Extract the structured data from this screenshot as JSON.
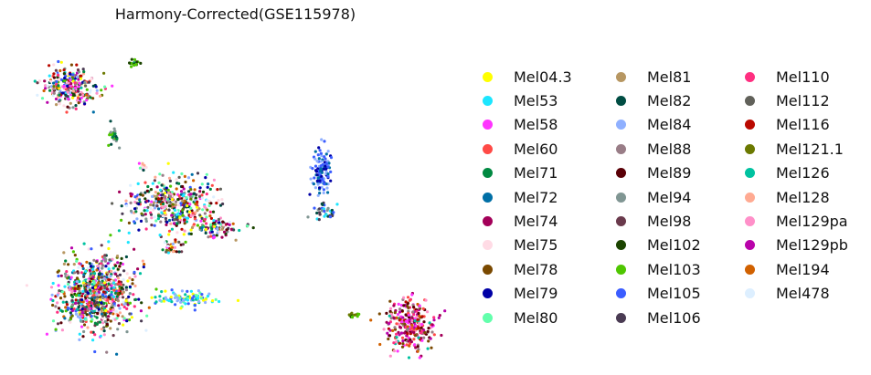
{
  "chart_data": {
    "type": "scatter",
    "title": "Harmony-Corrected(GSE115978)",
    "xlabel": "",
    "ylabel": "",
    "axes_visible": false,
    "legend_placement": "right",
    "legend_columns": 3,
    "series": [
      {
        "name": "Mel04.3",
        "color": "#FFFF00"
      },
      {
        "name": "Mel53",
        "color": "#1CE6FF"
      },
      {
        "name": "Mel58",
        "color": "#FF34FF"
      },
      {
        "name": "Mel60",
        "color": "#FF4A46"
      },
      {
        "name": "Mel71",
        "color": "#008941"
      },
      {
        "name": "Mel72",
        "color": "#006FA6"
      },
      {
        "name": "Mel74",
        "color": "#A30059"
      },
      {
        "name": "Mel75",
        "color": "#FFDBE5"
      },
      {
        "name": "Mel78",
        "color": "#7A4900"
      },
      {
        "name": "Mel79",
        "color": "#0000A6"
      },
      {
        "name": "Mel80",
        "color": "#63FFAC"
      },
      {
        "name": "Mel81",
        "color": "#B79762"
      },
      {
        "name": "Mel82",
        "color": "#004D43"
      },
      {
        "name": "Mel84",
        "color": "#8FB0FF"
      },
      {
        "name": "Mel88",
        "color": "#997D87"
      },
      {
        "name": "Mel89",
        "color": "#5A0007"
      },
      {
        "name": "Mel94",
        "color": "#809693"
      },
      {
        "name": "Mel98",
        "color": "#6A3A4C"
      },
      {
        "name": "Mel102",
        "color": "#1B4400"
      },
      {
        "name": "Mel103",
        "color": "#4FC601"
      },
      {
        "name": "Mel105",
        "color": "#3B5DFF"
      },
      {
        "name": "Mel106",
        "color": "#4A3B53"
      },
      {
        "name": "Mel110",
        "color": "#FF2F80"
      },
      {
        "name": "Mel112",
        "color": "#61615A"
      },
      {
        "name": "Mel116",
        "color": "#BA0900"
      },
      {
        "name": "Mel121.1",
        "color": "#6B7900"
      },
      {
        "name": "Mel126",
        "color": "#00C2A0"
      },
      {
        "name": "Mel128",
        "color": "#FFAA92"
      },
      {
        "name": "Mel129pa",
        "color": "#FF90C9"
      },
      {
        "name": "Mel129pb",
        "color": "#B903AA"
      },
      {
        "name": "Mel194",
        "color": "#D16100"
      },
      {
        "name": "Mel478",
        "color": "#DDEFFF"
      }
    ],
    "clusters": [
      {
        "cx": 0.11,
        "cy": 0.83,
        "rx": 0.07,
        "ry": 0.065,
        "n": 260,
        "mix": "all"
      },
      {
        "cx": 0.26,
        "cy": 0.905,
        "rx": 0.015,
        "ry": 0.015,
        "n": 14,
        "mix": [
          19,
          4,
          18
        ]
      },
      {
        "cx": 0.21,
        "cy": 0.68,
        "rx": 0.015,
        "ry": 0.035,
        "n": 24,
        "mix": [
          16,
          4,
          19,
          12
        ]
      },
      {
        "cx": 0.28,
        "cy": 0.59,
        "rx": 0.01,
        "ry": 0.02,
        "n": 8,
        "mix": [
          7,
          2,
          27
        ]
      },
      {
        "cx": 0.35,
        "cy": 0.47,
        "rx": 0.11,
        "ry": 0.09,
        "n": 420,
        "mix": "all"
      },
      {
        "cx": 0.45,
        "cy": 0.4,
        "rx": 0.06,
        "ry": 0.03,
        "n": 90,
        "mix": "all"
      },
      {
        "cx": 0.35,
        "cy": 0.34,
        "rx": 0.03,
        "ry": 0.03,
        "n": 30,
        "mix": "all"
      },
      {
        "cx": 0.17,
        "cy": 0.2,
        "rx": 0.1,
        "ry": 0.13,
        "n": 820,
        "mix": "all"
      },
      {
        "cx": 0.38,
        "cy": 0.18,
        "rx": 0.08,
        "ry": 0.025,
        "n": 90,
        "mix": [
          1,
          10,
          26,
          0,
          13,
          20
        ]
      },
      {
        "cx": 0.695,
        "cy": 0.57,
        "rx": 0.028,
        "ry": 0.07,
        "n": 110,
        "mix": [
          20,
          13,
          5,
          9
        ]
      },
      {
        "cx": 0.705,
        "cy": 0.45,
        "rx": 0.03,
        "ry": 0.025,
        "n": 35,
        "mix": [
          12,
          21,
          1,
          16,
          20
        ]
      },
      {
        "cx": 0.77,
        "cy": 0.13,
        "rx": 0.015,
        "ry": 0.012,
        "n": 14,
        "mix": [
          18,
          25,
          19
        ]
      },
      {
        "cx": 0.9,
        "cy": 0.1,
        "rx": 0.065,
        "ry": 0.09,
        "n": 280,
        "mix": [
          22,
          3,
          29,
          28,
          6,
          8,
          14,
          15,
          24,
          30,
          26,
          2
        ]
      }
    ]
  }
}
